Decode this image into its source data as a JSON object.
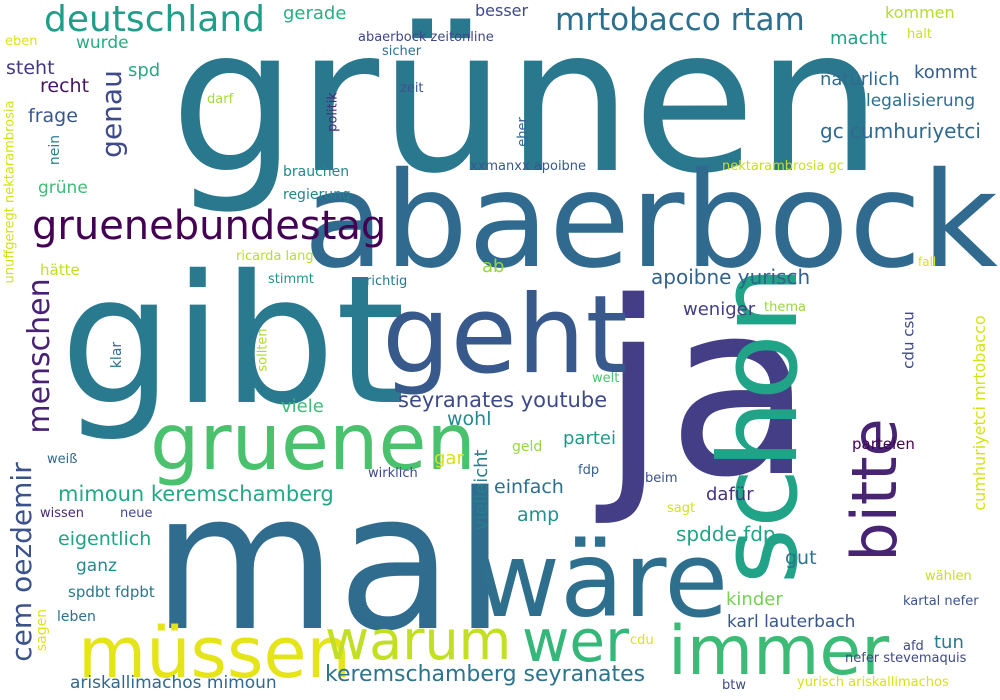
{
  "words": [
    {
      "text": "grünen",
      "color": "#2a788e"
    },
    {
      "text": "abaerbock",
      "color": "#306a8e"
    },
    {
      "text": "ja",
      "color": "#433e85"
    },
    {
      "text": "mal",
      "color": "#2f6c8e"
    },
    {
      "text": "gibt",
      "color": "#297a8e"
    },
    {
      "text": "schon",
      "color": "#20a386"
    },
    {
      "text": "geht",
      "color": "#38598c"
    },
    {
      "text": "wäre",
      "color": "#2e6f8e"
    },
    {
      "text": "gruenen",
      "color": "#4ac16d"
    },
    {
      "text": "bitte",
      "color": "#482475"
    },
    {
      "text": "immer",
      "color": "#3bbb75"
    },
    {
      "text": "müssen",
      "color": "#e5e419"
    },
    {
      "text": "warum",
      "color": "#c2df23"
    },
    {
      "text": "wer",
      "color": "#35b779"
    },
    {
      "text": "gruenebundestag",
      "color": "#440154"
    },
    {
      "text": "deutschland",
      "color": "#1f9e89"
    },
    {
      "text": "mrtobacco rtam",
      "color": "#2d708e"
    },
    {
      "text": "menschen",
      "color": "#482173"
    },
    {
      "text": "cem oezdemir",
      "color": "#3b528b"
    },
    {
      "text": "genau",
      "color": "#3e4a89"
    },
    {
      "text": "seyranates youtube",
      "color": "#3e4989"
    },
    {
      "text": "mimoun keremschamberg",
      "color": "#22a884"
    },
    {
      "text": "keremschamberg seyranates",
      "color": "#2c738e"
    },
    {
      "text": "ariskallimachos mimoun",
      "color": "#31688e"
    },
    {
      "text": "gc cumhuriyetci",
      "color": "#31688e"
    },
    {
      "text": "apoibne yurisch",
      "color": "#33638d"
    },
    {
      "text": "karl lauterbach",
      "color": "#39568c"
    },
    {
      "text": "spdde fdp",
      "color": "#20a486"
    },
    {
      "text": "cumhuriyetci mrtobacco",
      "color": "#d5e21a"
    },
    {
      "text": "legalisierung",
      "color": "#2e6e8e"
    },
    {
      "text": "natürlich",
      "color": "#2f6b8e"
    },
    {
      "text": "kommt",
      "color": "#365d8d"
    },
    {
      "text": "macht",
      "color": "#1fa187"
    },
    {
      "text": "gerade",
      "color": "#29af7f"
    },
    {
      "text": "besser",
      "color": "#3e4a89"
    },
    {
      "text": "kommen",
      "color": "#b5de2b"
    },
    {
      "text": "halt",
      "color": "#cae11f"
    },
    {
      "text": "abaerbock zeitonline",
      "color": "#3f4788"
    },
    {
      "text": "sicher",
      "color": "#2c728e"
    },
    {
      "text": "eben",
      "color": "#dde318"
    },
    {
      "text": "wurde",
      "color": "#26ad81"
    },
    {
      "text": "spd",
      "color": "#25ab82"
    },
    {
      "text": "steht",
      "color": "#453781"
    },
    {
      "text": "recht",
      "color": "#471365"
    },
    {
      "text": "frage",
      "color": "#38588c"
    },
    {
      "text": "unuffgeregt nektarambrosia",
      "color": "#d2e21b"
    },
    {
      "text": "darf",
      "color": "#a5db36"
    },
    {
      "text": "zeit",
      "color": "#3a548c"
    },
    {
      "text": "politik",
      "color": "#472d7b"
    },
    {
      "text": "eher",
      "color": "#33638d"
    },
    {
      "text": "nein",
      "color": "#26818e"
    },
    {
      "text": "grüne",
      "color": "#3dbc74"
    },
    {
      "text": "brauchen",
      "color": "#24878e"
    },
    {
      "text": "xxmanxx apoibne",
      "color": "#38598c"
    },
    {
      "text": "nektarambrosia gc",
      "color": "#c5e021"
    },
    {
      "text": "regierung",
      "color": "#26828e"
    },
    {
      "text": "hätte",
      "color": "#c0df25"
    },
    {
      "text": "ricarda lang",
      "color": "#b8de29"
    },
    {
      "text": "ab",
      "color": "#90d743"
    },
    {
      "text": "fall",
      "color": "#dae319"
    },
    {
      "text": "stimmt",
      "color": "#1f958b"
    },
    {
      "text": "richtig",
      "color": "#2a778e"
    },
    {
      "text": "weniger",
      "color": "#433e85"
    },
    {
      "text": "thema",
      "color": "#98d83e"
    },
    {
      "text": "cdu csu",
      "color": "#3f4889"
    },
    {
      "text": "klar",
      "color": "#2c728e"
    },
    {
      "text": "sollten",
      "color": "#addc30"
    },
    {
      "text": "welt",
      "color": "#4ec36b"
    },
    {
      "text": "viele",
      "color": "#3dbc74"
    },
    {
      "text": "wohl",
      "color": "#23898e"
    },
    {
      "text": "gar",
      "color": "#d8e219"
    },
    {
      "text": "geld",
      "color": "#95d840"
    },
    {
      "text": "partei",
      "color": "#1f9a8a"
    },
    {
      "text": "parteien",
      "color": "#440154"
    },
    {
      "text": "weiß",
      "color": "#31688e"
    },
    {
      "text": "wirklich",
      "color": "#3e4989"
    },
    {
      "text": "fdp",
      "color": "#355f8d"
    },
    {
      "text": "beim",
      "color": "#3b528b"
    },
    {
      "text": "vielleicht",
      "color": "#277f8e"
    },
    {
      "text": "einfach",
      "color": "#2d708e"
    },
    {
      "text": "dafür",
      "color": "#46327e"
    },
    {
      "text": "wissen",
      "color": "#482878"
    },
    {
      "text": "neue",
      "color": "#3e4a89"
    },
    {
      "text": "amp",
      "color": "#21918c"
    },
    {
      "text": "sagt",
      "color": "#d2e21b"
    },
    {
      "text": "eigentlich",
      "color": "#20a486"
    },
    {
      "text": "ganz",
      "color": "#23898e"
    },
    {
      "text": "gut",
      "color": "#2b758e"
    },
    {
      "text": "wählen",
      "color": "#c8e020"
    },
    {
      "text": "spdbt fdpbt",
      "color": "#2a778e"
    },
    {
      "text": "kinder",
      "color": "#75d054"
    },
    {
      "text": "sagen",
      "color": "#dfe318"
    },
    {
      "text": "leben",
      "color": "#2e6e8e"
    },
    {
      "text": "kartal nefer",
      "color": "#3a548c"
    },
    {
      "text": "cdu",
      "color": "#dde318"
    },
    {
      "text": "tun",
      "color": "#29798e"
    },
    {
      "text": "afd",
      "color": "#3f4788"
    },
    {
      "text": "nefer stevemaquis",
      "color": "#3e4989"
    },
    {
      "text": "btw",
      "color": "#3f4788"
    },
    {
      "text": "yurisch ariskallimachos",
      "color": "#d8e219"
    }
  ]
}
